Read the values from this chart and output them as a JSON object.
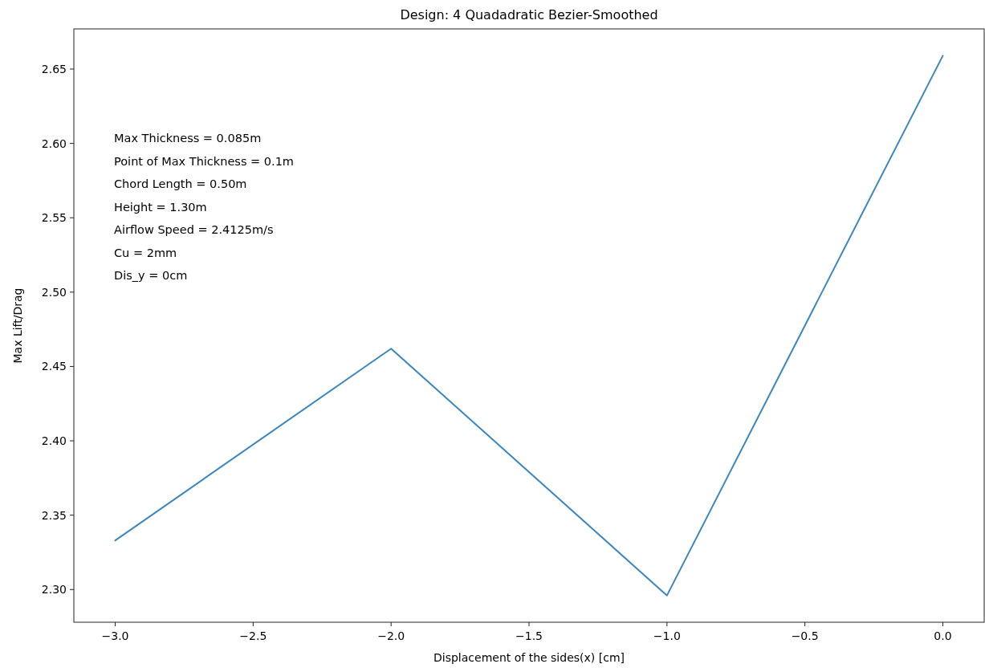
{
  "chart_data": {
    "type": "line",
    "title": "Design: 4 Quadadratic Bezier-Smoothed",
    "xlabel": "Displacement of the sides(x) [cm]",
    "ylabel": "Max Lift/Drag",
    "x": [
      -3,
      -2,
      -1,
      0
    ],
    "series": [
      {
        "color": "#3b86c0",
        "values": [
          2.333,
          2.462,
          2.296,
          2.659
        ]
      }
    ],
    "xlim": [
      -3.15,
      0.15
    ],
    "xticks": [
      {
        "value": -3,
        "label": "−3.0"
      },
      {
        "value": -2.5,
        "label": "−2.5"
      },
      {
        "value": -2,
        "label": "−2.0"
      },
      {
        "value": -1.5,
        "label": "−1.5"
      },
      {
        "value": -1,
        "label": "−1.0"
      },
      {
        "value": -0.5,
        "label": "−0.5"
      },
      {
        "value": 0,
        "label": "0.0"
      }
    ],
    "ylim": [
      2.278,
      2.677
    ],
    "yticks": [
      {
        "value": 2.3,
        "label": "2.30"
      },
      {
        "value": 2.35,
        "label": "2.35"
      },
      {
        "value": 2.4,
        "label": "2.40"
      },
      {
        "value": 2.45,
        "label": "2.45"
      },
      {
        "value": 2.5,
        "label": "2.50"
      },
      {
        "value": 2.55,
        "label": "2.55"
      },
      {
        "value": 2.6,
        "label": "2.60"
      },
      {
        "value": 2.65,
        "label": "2.65"
      }
    ],
    "grid": false,
    "annotations": [
      "Max Thickness = 0.085m",
      "Point of Max Thickness = 0.1m",
      "Chord Length = 0.50m",
      "Height = 1.30m",
      "Airflow Speed = 2.4125m/s",
      "Cu = 2mm",
      "Dis_y = 0cm"
    ]
  }
}
